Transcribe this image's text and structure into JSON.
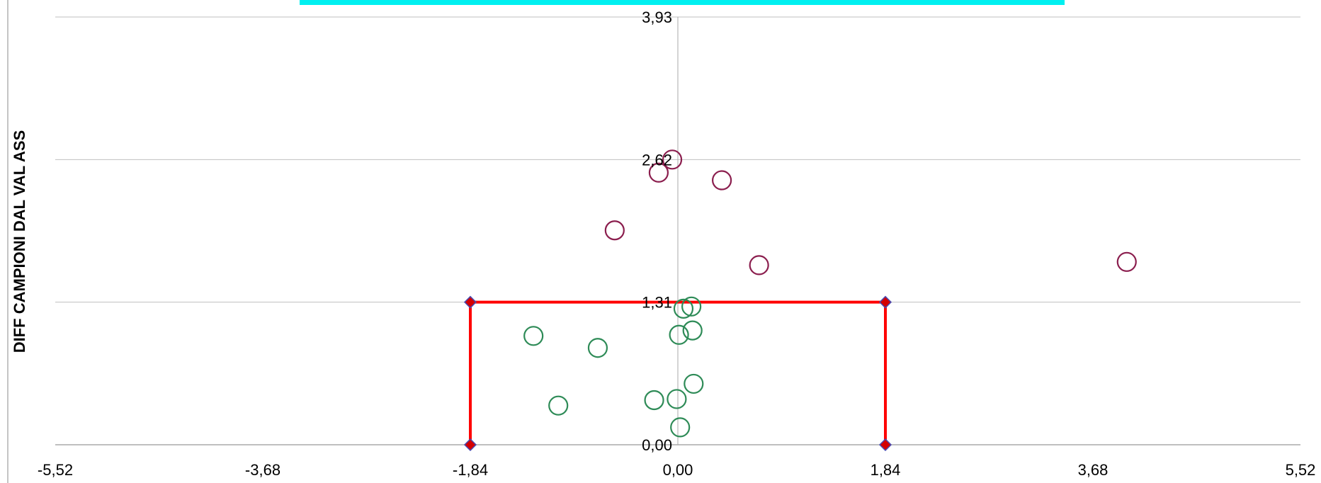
{
  "chart_data": {
    "type": "scatter",
    "title": "",
    "xlabel": "",
    "ylabel": "DIFF CAMPIONI DAL VAL ASS",
    "xlim": [
      -5.52,
      5.52
    ],
    "ylim": [
      0.0,
      3.93
    ],
    "x_ticks": [
      "-5,52",
      "-3,68",
      "-1,84",
      "0,00",
      "1,84",
      "3,68",
      "5,52"
    ],
    "x_tick_values": [
      -5.52,
      -3.68,
      -1.84,
      0.0,
      1.84,
      3.68,
      5.52
    ],
    "y_ticks": [
      "0,00",
      "1,31",
      "2,62",
      "3,93"
    ],
    "y_tick_values": [
      0.0,
      1.31,
      2.62,
      3.93
    ],
    "grid": "horizontal",
    "legend": "none",
    "title_bar_color": "#00f0f0",
    "control_limits": {
      "color": "#ff0000",
      "marker_color": "#d40000",
      "marker_edge": "#4a4ab0",
      "points": [
        {
          "x": -1.84,
          "y": 0.0
        },
        {
          "x": -1.84,
          "y": 1.31
        },
        {
          "x": 1.84,
          "y": 1.31
        },
        {
          "x": 1.84,
          "y": 0.0
        }
      ]
    },
    "series": [
      {
        "color": "#2e8b57",
        "marker": "open-circle",
        "points": [
          {
            "x": 0.12,
            "y": 1.27
          },
          {
            "x": 0.05,
            "y": 1.25
          },
          {
            "x": 0.13,
            "y": 1.05
          },
          {
            "x": 0.01,
            "y": 1.01
          },
          {
            "x": -1.28,
            "y": 1.0
          },
          {
            "x": -0.71,
            "y": 0.89
          },
          {
            "x": 0.14,
            "y": 0.56
          },
          {
            "x": -0.01,
            "y": 0.42
          },
          {
            "x": -0.21,
            "y": 0.41
          },
          {
            "x": -1.06,
            "y": 0.36
          },
          {
            "x": 0.02,
            "y": 0.16
          }
        ]
      },
      {
        "color": "#8b1e4e",
        "marker": "open-circle",
        "points": [
          {
            "x": -0.05,
            "y": 2.62
          },
          {
            "x": -0.17,
            "y": 2.5
          },
          {
            "x": 0.39,
            "y": 2.43
          },
          {
            "x": -0.56,
            "y": 1.97
          },
          {
            "x": 0.72,
            "y": 1.65
          },
          {
            "x": 3.98,
            "y": 1.68
          }
        ]
      }
    ]
  }
}
